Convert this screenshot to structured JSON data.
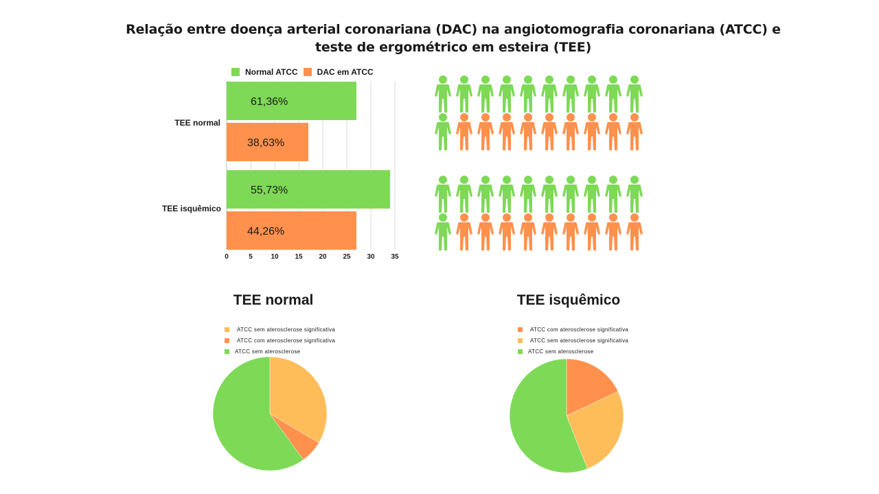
{
  "title_line1": "Relação entre doença arterial coronariana (DAC) na angiotomografia coronariana (ATCC) e",
  "title_line2": "teste de ergométrico em esteira (TEE)",
  "colors": {
    "green": "#7ED957",
    "orange": "#FF914D",
    "yellow": "#FFBD59",
    "grid": "#d9d9d9"
  },
  "bar_legend": [
    {
      "label": "Normal ATCC",
      "color": "#7ED957"
    },
    {
      "label": "DAC em ATCC",
      "color": "#FF914D"
    }
  ],
  "pictogram": {
    "groups": [
      {
        "green": 11,
        "orange": 9,
        "per_row": 10
      },
      {
        "green": 11,
        "orange": 9,
        "per_row": 10
      }
    ],
    "icon_name": "person-icon"
  },
  "pies": [
    {
      "title": "TEE normal",
      "legend": [
        {
          "label": "ATCC sem aterosclerose significativa",
          "color": "#FFBD59"
        },
        {
          "label": "ATCC com aterosclerose significativa",
          "color": "#FF914D"
        },
        {
          "label": "ATCC sem aterosclerose",
          "color": "#7ED957"
        }
      ]
    },
    {
      "title": "TEE isquêmico",
      "legend": [
        {
          "label": "ATCC com aterosclerose significativa",
          "color": "#FF914D"
        },
        {
          "label": "ATCC sem aterosclerose significativa",
          "color": "#FFBD59"
        },
        {
          "label": "ATCC sem aterosclerose",
          "color": "#7ED957"
        }
      ]
    }
  ],
  "chart_data": [
    {
      "type": "bar",
      "orientation": "horizontal",
      "categories": [
        "TEE normal",
        "TEE isquêmico"
      ],
      "series": [
        {
          "name": "Normal ATCC",
          "values": [
            27,
            34
          ],
          "labels": [
            "61,36%",
            "55,73%"
          ],
          "color": "#7ED957"
        },
        {
          "name": "DAC em ATCC",
          "values": [
            17,
            27
          ],
          "labels": [
            "38,63%",
            "44,26%"
          ],
          "color": "#FF914D"
        }
      ],
      "xlim": [
        0,
        35
      ],
      "xticks": [
        0,
        5,
        10,
        15,
        20,
        25,
        30,
        35
      ],
      "grid": true,
      "legend_position": "top"
    },
    {
      "type": "pie",
      "title": "TEE normal",
      "slices": [
        {
          "label": "ATCC sem aterosclerose significativa",
          "value": 33.5,
          "color": "#FFBD59"
        },
        {
          "label": "ATCC com aterosclerose significativa",
          "value": 6.5,
          "color": "#FF914D"
        },
        {
          "label": "ATCC sem aterosclerose",
          "value": 60.0,
          "color": "#7ED957"
        }
      ],
      "start_angle_deg": 0,
      "direction": "clockwise",
      "legend_position": "top-left"
    },
    {
      "type": "pie",
      "title": "TEE isquêmico",
      "slices": [
        {
          "label": "ATCC com aterosclerose significativa",
          "value": 18.0,
          "color": "#FF914D"
        },
        {
          "label": "ATCC sem aterosclerose significativa",
          "value": 26.0,
          "color": "#FFBD59"
        },
        {
          "label": "ATCC sem aterosclerose",
          "value": 56.0,
          "color": "#7ED957"
        }
      ],
      "start_angle_deg": 0,
      "direction": "clockwise",
      "legend_position": "top-left"
    }
  ]
}
